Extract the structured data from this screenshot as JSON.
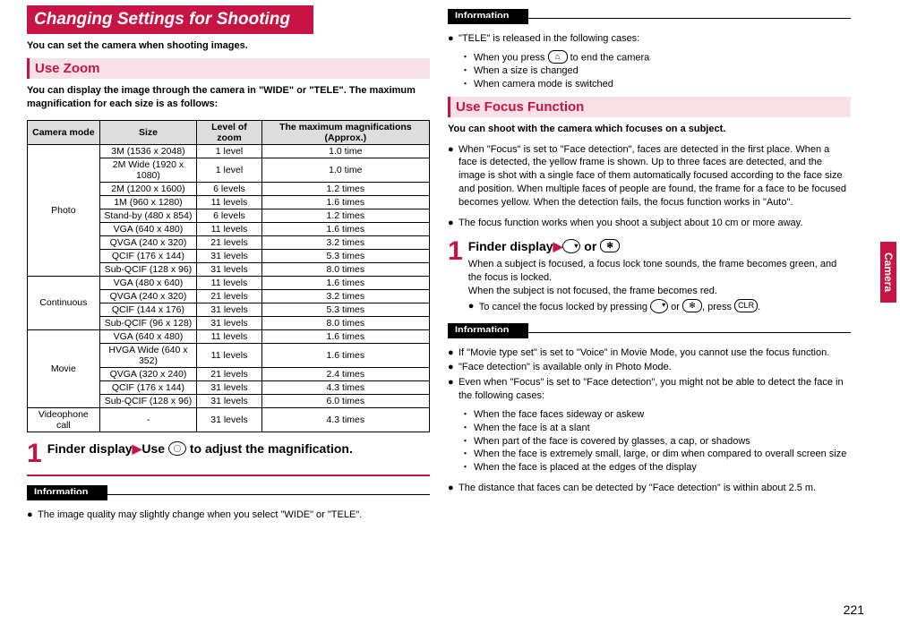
{
  "left": {
    "title": "Changing Settings for Shooting",
    "subtitle": "You can set the camera when shooting images.",
    "zoom_header": "Use Zoom",
    "zoom_desc": "You can display the image through the camera in \"WIDE\" or \"TELE\". The maximum magnification for each size is as follows:",
    "table_headers": [
      "Camera mode",
      "Size",
      "Level of zoom",
      "The maximum magnifications (Approx.)"
    ],
    "rows": [
      {
        "mode": "Photo",
        "span": 9,
        "items": [
          [
            "3M (1536 x 2048)",
            "1 level",
            "1.0 time"
          ],
          [
            "2M Wide (1920 x 1080)",
            "1 level",
            "1.0 time"
          ],
          [
            "2M (1200 x 1600)",
            "6 levels",
            "1.2 times"
          ],
          [
            "1M (960 x 1280)",
            "11 levels",
            "1.6 times"
          ],
          [
            "Stand-by (480 x 854)",
            "6 levels",
            "1.2 times"
          ],
          [
            "VGA (640 x 480)",
            "11 levels",
            "1.6 times"
          ],
          [
            "QVGA (240 x 320)",
            "21 levels",
            "3.2 times"
          ],
          [
            "QCIF (176 x 144)",
            "31 levels",
            "5.3 times"
          ],
          [
            "Sub-QCIF (128 x 96)",
            "31 levels",
            "8.0 times"
          ]
        ]
      },
      {
        "mode": "Continuous",
        "span": 4,
        "items": [
          [
            "VGA (480 x 640)",
            "11 levels",
            "1.6 times"
          ],
          [
            "QVGA (240 x 320)",
            "21 levels",
            "3.2 times"
          ],
          [
            "QCIF (144 x 176)",
            "31 levels",
            "5.3 times"
          ],
          [
            "Sub-QCIF (96 x 128)",
            "31 levels",
            "8.0 times"
          ]
        ]
      },
      {
        "mode": "Movie",
        "span": 5,
        "items": [
          [
            "VGA (640 x 480)",
            "11 levels",
            "1.6 times"
          ],
          [
            "HVGA Wide (640 x 352)",
            "11 levels",
            "1.6 times"
          ],
          [
            "QVGA (320 x 240)",
            "21 levels",
            "2.4 times"
          ],
          [
            "QCIF (176 x 144)",
            "31 levels",
            "4.3 times"
          ],
          [
            "Sub-QCIF (128 x 96)",
            "31 levels",
            "6.0 times"
          ]
        ]
      },
      {
        "mode": "Videophone call",
        "span": 1,
        "items": [
          [
            "-",
            "31 levels",
            "4.3 times"
          ]
        ]
      }
    ],
    "step_head_a": "Finder display",
    "step_head_b": "Use ",
    "step_head_c": " to adjust the magnification.",
    "info_label": "Information",
    "info1": "The image quality may slightly change when you select \"WIDE\" or \"TELE\"."
  },
  "right": {
    "info_label": "Information",
    "info2_head": "\"TELE\" is released in the following cases:",
    "info2_items": [
      "When you press ⌂ to end the camera",
      "When a size is changed",
      "When camera mode is switched"
    ],
    "focus_header": "Use Focus Function",
    "focus_desc": "You can shoot with the camera which focuses on a subject.",
    "focus_b1": "When \"Focus\" is set to \"Face detection\", faces are detected in the first place. When a face is detected, the yellow frame is shown. Up to three faces are detected, and the image is shot with a single face of them automatically focused according to the face size and position. When multiple faces of people are found, the frame for a face to be focused becomes yellow. When the detection fails, the focus function works in \"Auto\".",
    "focus_b2": "The focus function works when you shoot a subject about 10 cm or more away.",
    "step_head": "Finder display",
    "step_or": " or ",
    "step_desc1": "When a subject is focused, a focus lock tone sounds, the frame becomes green, and the focus is locked.",
    "step_desc2": "When the subject is not focused, the frame becomes red.",
    "step_desc3a": "To cancel the focus locked by pressing ",
    "step_desc3b": " or ",
    "step_desc3c": ", press ",
    "step_desc3d": ".",
    "info3_items": [
      "If \"Movie type set\" is set to \"Voice\" in Movie Mode, you cannot use the focus function.",
      "\"Face detection\" is available only in Photo Mode.",
      "Even when \"Focus\" is set to \"Face detection\", you might not be able to detect the face in the following cases:"
    ],
    "info3_sub": [
      "When the face faces sideway or askew",
      "When the face is at a slant",
      "When part of the face is covered by glasses, a cap, or shadows",
      "When the face is extremely small, large, or dim when compared to overall screen size",
      "When the face is placed at the edges of the display"
    ],
    "info3_last": "The distance that faces can be detected by \"Face detection\" is within about 2.5 m."
  },
  "side_tab": "Camera",
  "page_num": "221",
  "clr_key": "CLR"
}
